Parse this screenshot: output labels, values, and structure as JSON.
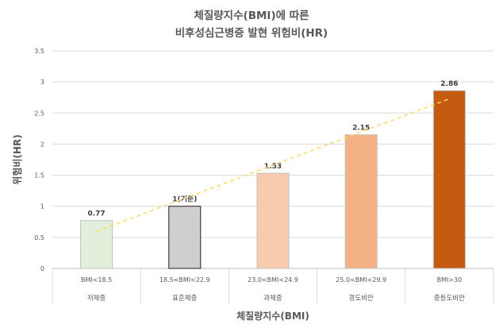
{
  "chart_data": {
    "type": "bar",
    "title": "체질량지수(BMI)에 따른",
    "subtitle": "비후성심근병증 발현 위험비(HR)",
    "xlabel": "체질량지수(BMI)",
    "ylabel": "위험비(HR)",
    "ylim": [
      0,
      3.5
    ],
    "yticks": [
      "0",
      "0.5",
      "1",
      "1.5",
      "2",
      "2.5",
      "3",
      "3.5"
    ],
    "grid": true,
    "legend": "none",
    "categories": [
      {
        "range": "BMI<18.5",
        "label": "저체중"
      },
      {
        "range": "18.5<BMI<22.9",
        "label": "표준체중"
      },
      {
        "range": "23.0<BMI<24.9",
        "label": "과체중"
      },
      {
        "range": "25.0<BMI<29.9",
        "label": "경도비만"
      },
      {
        "range": "BMI>30",
        "label": "중등도비만"
      }
    ],
    "values": [
      0.77,
      1,
      1.53,
      2.15,
      2.86
    ],
    "data_labels": [
      "0.77",
      "1(기준)",
      "1.53",
      "2.15",
      "2.86"
    ],
    "bar_colors": [
      "#e2efda",
      "#d0cece",
      "#f8cbad",
      "#f4b183",
      "#c55a11"
    ],
    "trendline": {
      "type": "linear",
      "style": "dashed",
      "color": "#ffd966"
    }
  }
}
